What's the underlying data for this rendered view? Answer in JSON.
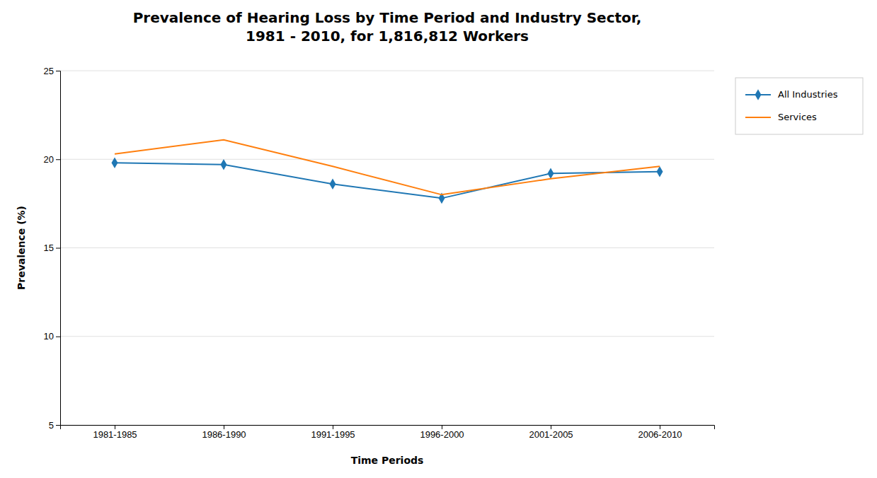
{
  "chart_data": {
    "type": "line",
    "title": "Prevalence of Hearing Loss by Time Period and Industry Sector,\n1981 - 2010, for 1,816,812 Workers",
    "x_label": "Time Periods",
    "y_label": "Prevalence (%)",
    "categories": [
      "1981-1985",
      "1986-1990",
      "1991-1995",
      "1996-2000",
      "2001-2005",
      "2006-2010"
    ],
    "series": [
      {
        "name": "All Industries",
        "marker": "diamond",
        "values": [
          19.8,
          19.7,
          18.6,
          17.8,
          19.2,
          19.3
        ]
      },
      {
        "name": "Services",
        "values": [
          20.3,
          21.1,
          19.6,
          18.0,
          18.9,
          19.6
        ]
      }
    ],
    "ylim": [
      5,
      25
    ],
    "yticks": [
      5,
      10,
      15,
      20,
      25
    ],
    "grid": true,
    "legend": "right"
  }
}
